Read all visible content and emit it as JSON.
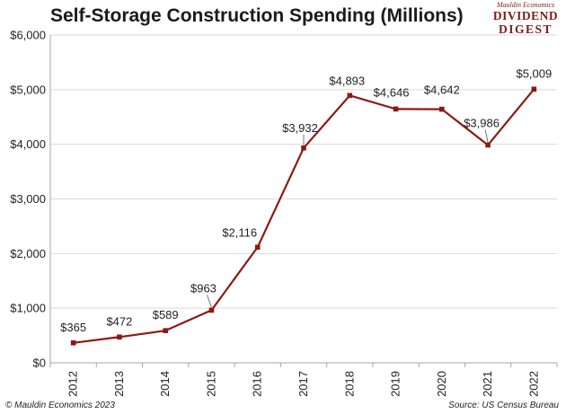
{
  "header": {
    "title": "Self-Storage Construction Spending (Millions)"
  },
  "logo": {
    "line1": "Mauldin Economics",
    "line2": "DIVIDEND",
    "line3": "DIGEST"
  },
  "footer": {
    "copyright": "© Mauldin Economics 2023",
    "source": "Source: US Census Bureau"
  },
  "colors": {
    "series": "#8b1a13",
    "grid": "#d9d9d9",
    "axis": "#a6a6a6"
  },
  "chart_data": {
    "type": "line",
    "title": "Self-Storage Construction Spending (Millions)",
    "xlabel": "",
    "ylabel": "",
    "categories": [
      "2012",
      "2013",
      "2014",
      "2015",
      "2016",
      "2017",
      "2018",
      "2019",
      "2020",
      "2021",
      "2022"
    ],
    "values": [
      365,
      472,
      589,
      963,
      2116,
      3932,
      4893,
      4646,
      4642,
      3986,
      5009
    ],
    "data_labels": [
      "$365",
      "$472",
      "$589",
      "$963",
      "$2,116",
      "$3,932",
      "$4,893",
      "$4,646",
      "$4,642",
      "$3,986",
      "$5,009"
    ],
    "ylim": [
      0,
      6000
    ],
    "y_ticks": [
      0,
      1000,
      2000,
      3000,
      4000,
      5000,
      6000
    ],
    "y_tick_labels": [
      "$0",
      "$1,000",
      "$2,000",
      "$3,000",
      "$4,000",
      "$5,000",
      "$6,000"
    ],
    "grid": true,
    "legend": "none"
  }
}
